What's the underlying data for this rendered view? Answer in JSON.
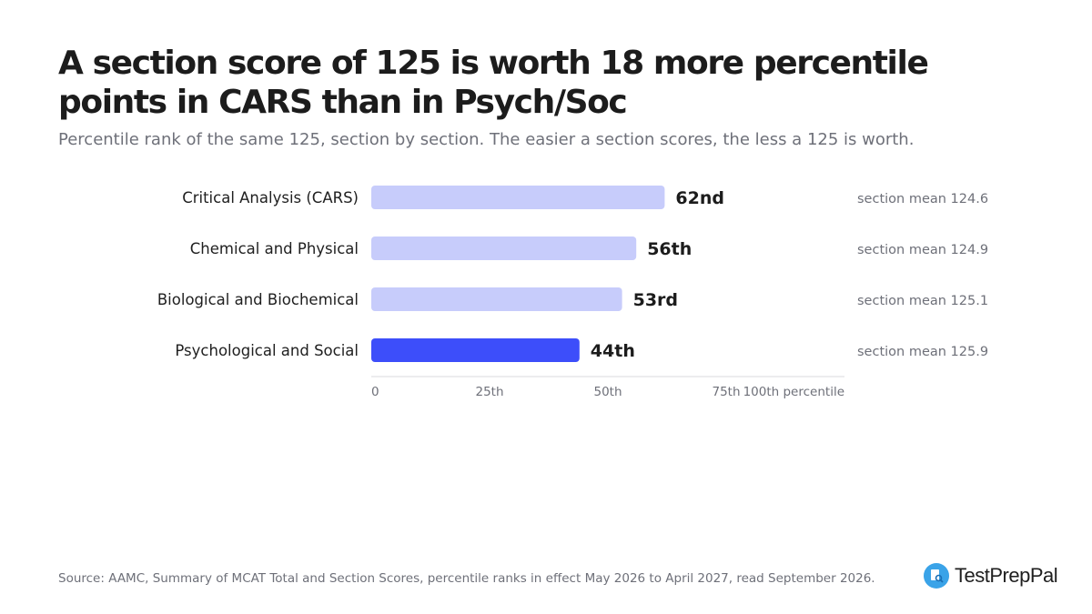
{
  "header": {
    "title": "A section score of 125 is worth 18 more percentile points in CARS than in Psych/Soc",
    "subtitle": "Percentile rank of the same 125, section by section. The easier a section scores, the less a 125 is worth."
  },
  "chart_data": {
    "type": "bar",
    "orientation": "horizontal",
    "categories": [
      "Critical Analysis (CARS)",
      "Chemical and Physical",
      "Biological and Biochemical",
      "Psychological and Social"
    ],
    "values": [
      62,
      56,
      53,
      44
    ],
    "value_labels": [
      "62nd",
      "56th",
      "53rd",
      "44th"
    ],
    "annotations": [
      "section mean 124.6",
      "section mean 124.9",
      "section mean 125.1",
      "section mean 125.9"
    ],
    "x_ticks": [
      0,
      25,
      50,
      75,
      100
    ],
    "x_tick_labels": [
      "0",
      "25th",
      "50th",
      "75th",
      "100th percentile"
    ],
    "xlim": [
      0,
      100
    ],
    "grid": false,
    "colors": {
      "default_bar": "#c7ccfb",
      "highlight_bar": "#3d4efa",
      "highlight_index": 3,
      "axis": "#d9d9de",
      "tick_text": "#6e7079",
      "annotation_text": "#6e7079"
    }
  },
  "footer": {
    "source": "Source: AAMC, Summary of MCAT Total and Section Scores, percentile ranks in effect May 2026 to April 2027, read September 2026.",
    "brand": "TestPrepPal",
    "brand_icon": "document-magnifier-icon"
  }
}
